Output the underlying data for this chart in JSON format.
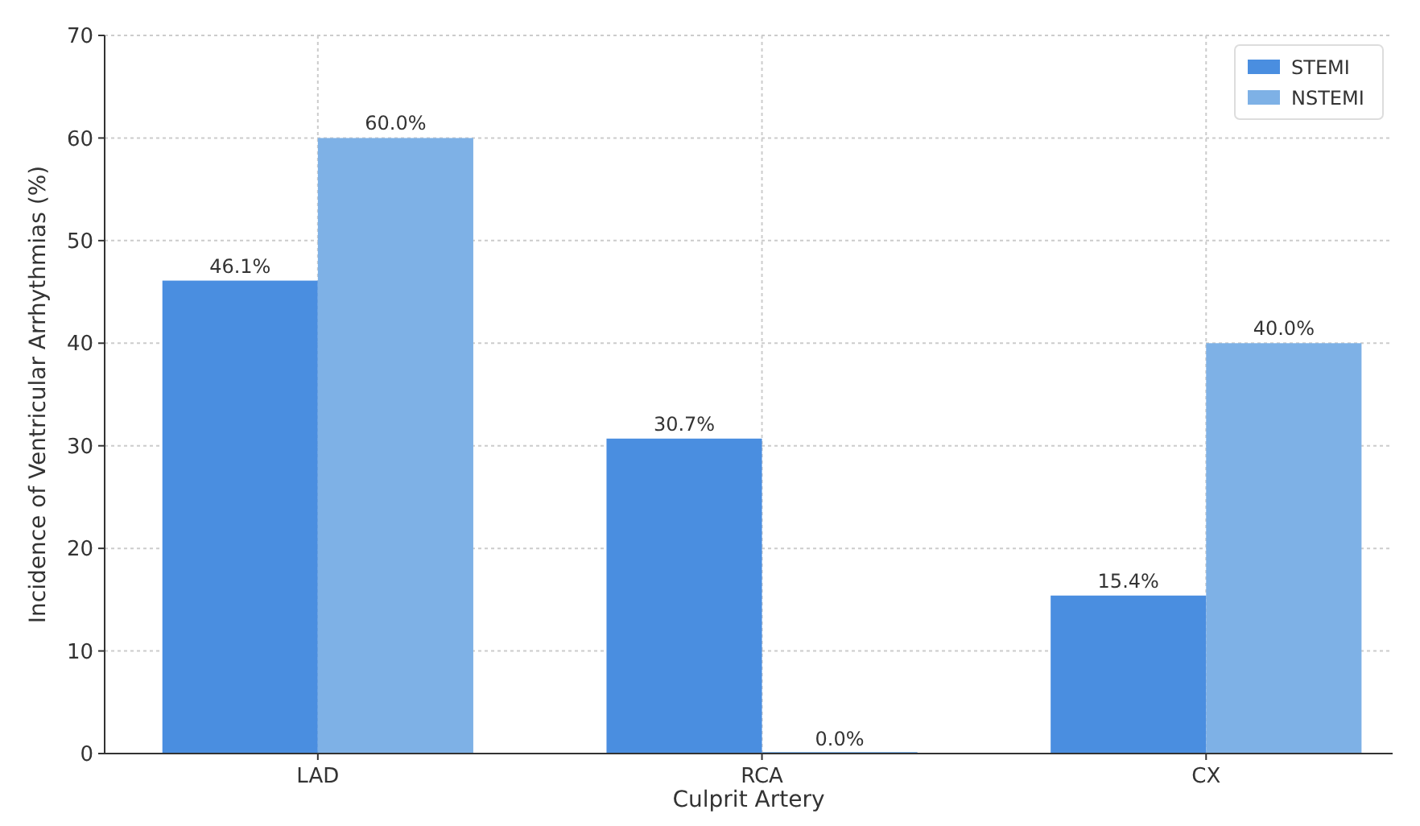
{
  "chart_data": {
    "type": "bar",
    "xlabel": "Culprit Artery",
    "ylabel": "Incidence of Ventricular Arrhythmias (%)",
    "categories": [
      "LAD",
      "RCA",
      "CX"
    ],
    "series": [
      {
        "name": "STEMI",
        "color": "#4a8ee0",
        "values": [
          46.1,
          30.7,
          15.4
        ],
        "value_labels": [
          "46.1%",
          "30.7%",
          "15.4%"
        ]
      },
      {
        "name": "NSTEMI",
        "color": "#7eb1e6",
        "values": [
          60.0,
          0.0,
          40.0
        ],
        "value_labels": [
          "60.0%",
          "0.0%",
          "40.0%"
        ]
      }
    ],
    "ylim": [
      0,
      70
    ],
    "yticks": [
      0,
      10,
      20,
      30,
      40,
      50,
      60,
      70
    ],
    "grid": true,
    "legend": "top right"
  }
}
